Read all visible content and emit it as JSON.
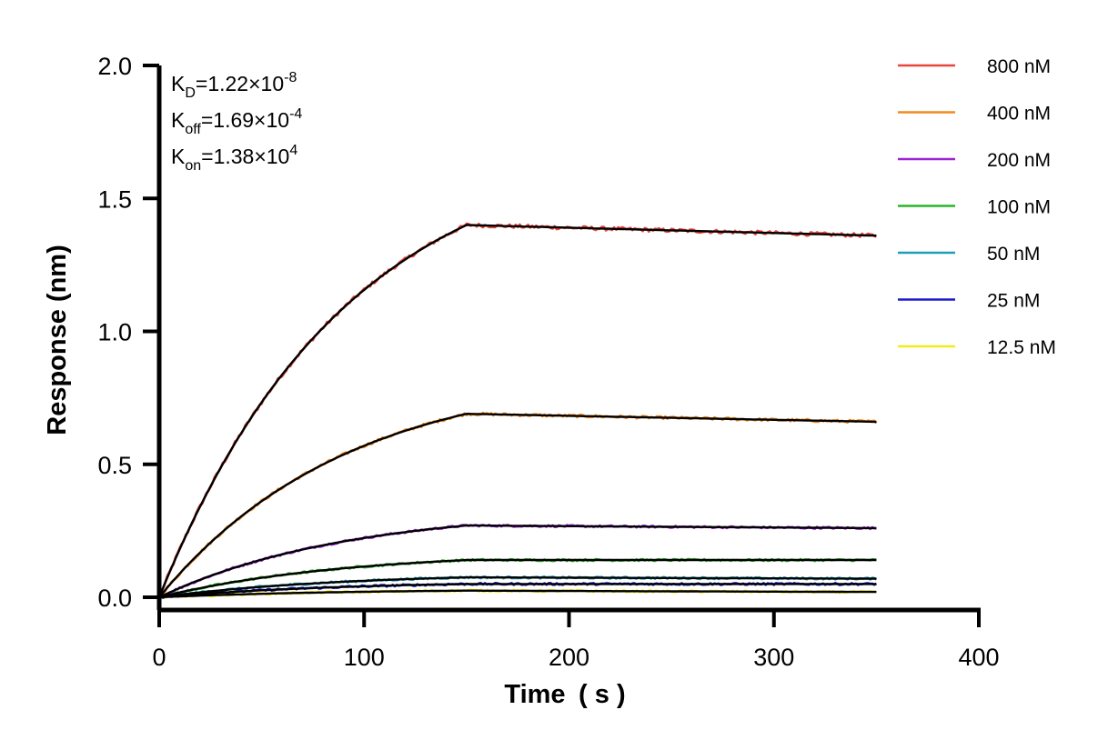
{
  "chart_data": {
    "type": "line",
    "xlabel": "Time ( s )",
    "ylabel": "Response (nm)",
    "xlim": [
      0,
      400
    ],
    "ylim": [
      0,
      2.0
    ],
    "x_ticks": [
      0,
      100,
      200,
      300,
      400
    ],
    "x_tick_labels": [
      "0",
      "100",
      "200",
      "300",
      "400"
    ],
    "y_ticks": [
      0,
      0.5,
      1.0,
      1.5,
      2.0
    ],
    "y_tick_labels": [
      "0.0",
      "0.5",
      "1.0",
      "1.5",
      "2.0"
    ],
    "grid": false,
    "legend_position": "right",
    "association_end_time": 150,
    "end_time": 350,
    "fit_color": "#000000",
    "annotations": [
      {
        "main": "K",
        "sub": "D",
        "value": "=1.22×10",
        "exp": "-8"
      },
      {
        "main": "K",
        "sub": "off",
        "value": "=1.69×10",
        "exp": "-4"
      },
      {
        "main": "K",
        "sub": "on",
        "value": "=1.38×10",
        "exp": "4"
      }
    ],
    "series": [
      {
        "name": "800 nM",
        "color": "#e8463c",
        "plateau": 1.4,
        "end_value": 1.36
      },
      {
        "name": "400 nM",
        "color": "#f28a1e",
        "plateau": 0.69,
        "end_value": 0.66
      },
      {
        "name": "200 nM",
        "color": "#9b22d6",
        "plateau": 0.27,
        "end_value": 0.26
      },
      {
        "name": "100 nM",
        "color": "#2ab32a",
        "plateau": 0.14,
        "end_value": 0.14
      },
      {
        "name": "50 nM",
        "color": "#1f9fb5",
        "plateau": 0.075,
        "end_value": 0.07
      },
      {
        "name": "25 nM",
        "color": "#1a1acc",
        "plateau": 0.05,
        "end_value": 0.05
      },
      {
        "name": "12.5 nM",
        "color": "#f5ea1a",
        "plateau": 0.025,
        "end_value": 0.02
      }
    ]
  }
}
